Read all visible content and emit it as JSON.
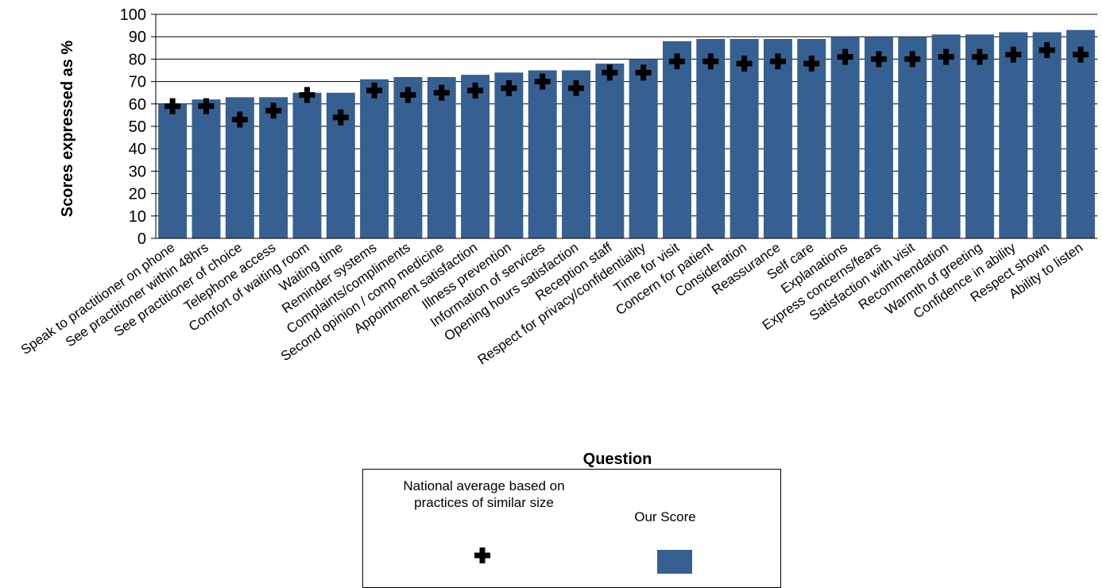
{
  "chart_data": {
    "type": "bar",
    "title": "",
    "xlabel": "Question",
    "ylabel": "Scores expressed as %",
    "ylim": [
      0,
      100
    ],
    "yticks": [
      0,
      10,
      20,
      30,
      40,
      50,
      60,
      70,
      80,
      90,
      100
    ],
    "grid": "horizontal",
    "legend_position": "bottom",
    "categories": [
      "Speak to practitioner on phone",
      "See practitioner within 48hrs",
      "See practitioner of choice",
      "Telephone access",
      "Comfort of waiting room",
      "Waiting time",
      "Reminder systems",
      "Complaints/compliments",
      "Second opinion / comp medicine",
      "Appointment satisfaction",
      "Illness prevention",
      "Information of services",
      "Opening hours satisfaction",
      "Reception staff",
      "Respect for privacy/confidentiality",
      "Time for visit",
      "Concern for patient",
      "Consideration",
      "Reassurance",
      "Self care",
      "Explanations",
      "Express concerns/fears",
      "Satisfaction with visit",
      "Recommendation",
      "Warmth of greeting",
      "Confidence in ability",
      "Respect shown",
      "Ability to listen"
    ],
    "series": [
      {
        "name": "Our Score",
        "kind": "bar",
        "color": "#376092",
        "values": [
          60,
          62,
          63,
          63,
          65,
          65,
          71,
          72,
          72,
          73,
          74,
          75,
          75,
          78,
          80,
          88,
          89,
          89,
          89,
          89,
          90,
          90,
          90,
          91,
          91,
          92,
          92,
          93
        ]
      },
      {
        "name": "National average based on practices of similar size",
        "kind": "marker",
        "marker": "cross",
        "color": "#000000",
        "values": [
          59,
          59,
          53,
          57,
          64,
          54,
          66,
          64,
          65,
          66,
          67,
          70,
          67,
          74,
          74,
          79,
          79,
          78,
          79,
          78,
          81,
          80,
          80,
          81,
          81,
          82,
          84,
          82
        ]
      }
    ]
  },
  "legend": {
    "national_label": "National average based on practices of similar size",
    "score_label": "Our Score"
  }
}
